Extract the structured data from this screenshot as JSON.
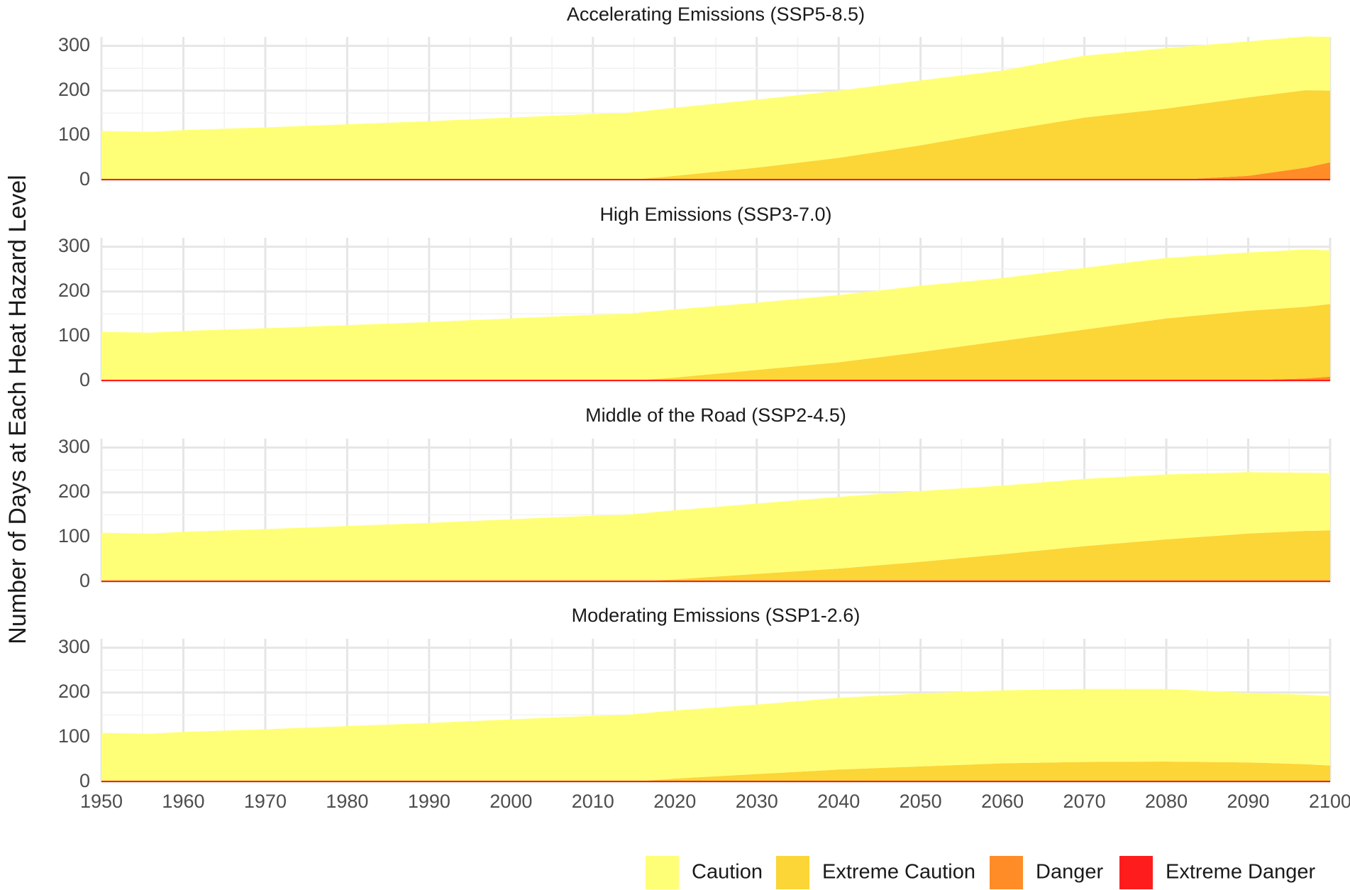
{
  "chart_data": {
    "type": "area",
    "stacked": true,
    "ylabel": "Number of Days at Each Heat Hazard Level",
    "xlabel": "",
    "xlim": [
      1950,
      2100
    ],
    "ylim": [
      0,
      320
    ],
    "x_ticks": [
      1950,
      1960,
      1970,
      1980,
      1990,
      2000,
      2010,
      2020,
      2030,
      2040,
      2050,
      2060,
      2070,
      2080,
      2090,
      2100
    ],
    "y_ticks": [
      0,
      100,
      200,
      300
    ],
    "grid": true,
    "legend_position": "bottom-right",
    "x": [
      1950,
      1956,
      1960,
      1970,
      1980,
      1990,
      2000,
      2010,
      2014,
      2020,
      2030,
      2040,
      2050,
      2060,
      2070,
      2080,
      2090,
      2097,
      2100
    ],
    "legend": [
      {
        "name": "Caution",
        "color": "#FFFF77"
      },
      {
        "name": "Extreme Caution",
        "color": "#FCD537"
      },
      {
        "name": "Danger",
        "color": "#FF8C26"
      },
      {
        "name": "Extreme Danger",
        "color": "#FF1C1C"
      }
    ],
    "panels": [
      {
        "title": "Accelerating Emissions (SSP5-8.5)",
        "series": [
          {
            "name": "Extreme Danger",
            "values": [
              0,
              0,
              0,
              0,
              0,
              0,
              0,
              0,
              0,
              0,
              0,
              0,
              0,
              0,
              0,
              0,
              0,
              0,
              0
            ]
          },
          {
            "name": "Danger",
            "values": [
              0,
              0,
              0,
              0,
              0,
              0,
              0,
              0,
              0,
              0,
              0,
              0,
              0,
              0,
              0,
              0,
              10,
              28,
              40
            ]
          },
          {
            "name": "Extreme Caution",
            "values": [
              0,
              0,
              0,
              0,
              0,
              0,
              0,
              0,
              0,
              10,
              28,
              50,
              78,
              110,
              140,
              160,
              175,
              173,
              160
            ]
          },
          {
            "name": "Caution",
            "values": [
              110,
              108,
              112,
              118,
              125,
              132,
              140,
              148,
              150,
              152,
              152,
              150,
              145,
              135,
              138,
              135,
              125,
              120,
              120
            ]
          }
        ]
      },
      {
        "title": "High Emissions (SSP3-7.0)",
        "series": [
          {
            "name": "Extreme Danger",
            "values": [
              0,
              0,
              0,
              0,
              0,
              0,
              0,
              0,
              0,
              0,
              0,
              0,
              0,
              0,
              0,
              0,
              0,
              0,
              0
            ]
          },
          {
            "name": "Danger",
            "values": [
              0,
              0,
              0,
              0,
              0,
              0,
              0,
              0,
              0,
              0,
              0,
              0,
              0,
              0,
              0,
              0,
              2,
              6,
              10
            ]
          },
          {
            "name": "Extreme Caution",
            "values": [
              0,
              0,
              0,
              0,
              0,
              0,
              0,
              0,
              0,
              8,
              25,
              42,
              65,
              90,
              115,
              140,
              155,
              160,
              162
            ]
          },
          {
            "name": "Caution",
            "values": [
              110,
              108,
              112,
              118,
              125,
              132,
              140,
              148,
              150,
              152,
              150,
              150,
              148,
              140,
              138,
              135,
              130,
              128,
              120
            ]
          }
        ]
      },
      {
        "title": "Middle of the Road (SSP2-4.5)",
        "series": [
          {
            "name": "Extreme Danger",
            "values": [
              0,
              0,
              0,
              0,
              0,
              0,
              0,
              0,
              0,
              0,
              0,
              0,
              0,
              0,
              0,
              0,
              0,
              0,
              0
            ]
          },
          {
            "name": "Danger",
            "values": [
              0,
              0,
              0,
              0,
              0,
              0,
              0,
              0,
              0,
              0,
              0,
              0,
              0,
              0,
              0,
              0,
              0,
              0,
              0
            ]
          },
          {
            "name": "Extreme Caution",
            "values": [
              0,
              0,
              0,
              0,
              0,
              0,
              0,
              0,
              0,
              6,
              18,
              30,
              45,
              62,
              80,
              95,
              108,
              114,
              115
            ]
          },
          {
            "name": "Caution",
            "values": [
              110,
              108,
              112,
              118,
              125,
              132,
              140,
              148,
              150,
              154,
              157,
              160,
              158,
              153,
              150,
              145,
              137,
              130,
              128
            ]
          }
        ]
      },
      {
        "title": "Moderating Emissions (SSP1-2.6)",
        "series": [
          {
            "name": "Extreme Danger",
            "values": [
              0,
              0,
              0,
              0,
              0,
              0,
              0,
              0,
              0,
              0,
              0,
              0,
              0,
              0,
              0,
              0,
              0,
              0,
              0
            ]
          },
          {
            "name": "Danger",
            "values": [
              0,
              0,
              0,
              0,
              0,
              0,
              0,
              0,
              0,
              0,
              0,
              0,
              0,
              0,
              0,
              0,
              0,
              0,
              0
            ]
          },
          {
            "name": "Extreme Caution",
            "values": [
              0,
              0,
              0,
              0,
              0,
              0,
              0,
              0,
              0,
              8,
              18,
              28,
              35,
              42,
              45,
              46,
              44,
              40,
              37
            ]
          },
          {
            "name": "Caution",
            "values": [
              110,
              108,
              112,
              118,
              125,
              132,
              140,
              148,
              150,
              152,
              155,
              160,
              163,
              163,
              163,
              162,
              155,
              155,
              155
            ]
          }
        ]
      }
    ]
  }
}
